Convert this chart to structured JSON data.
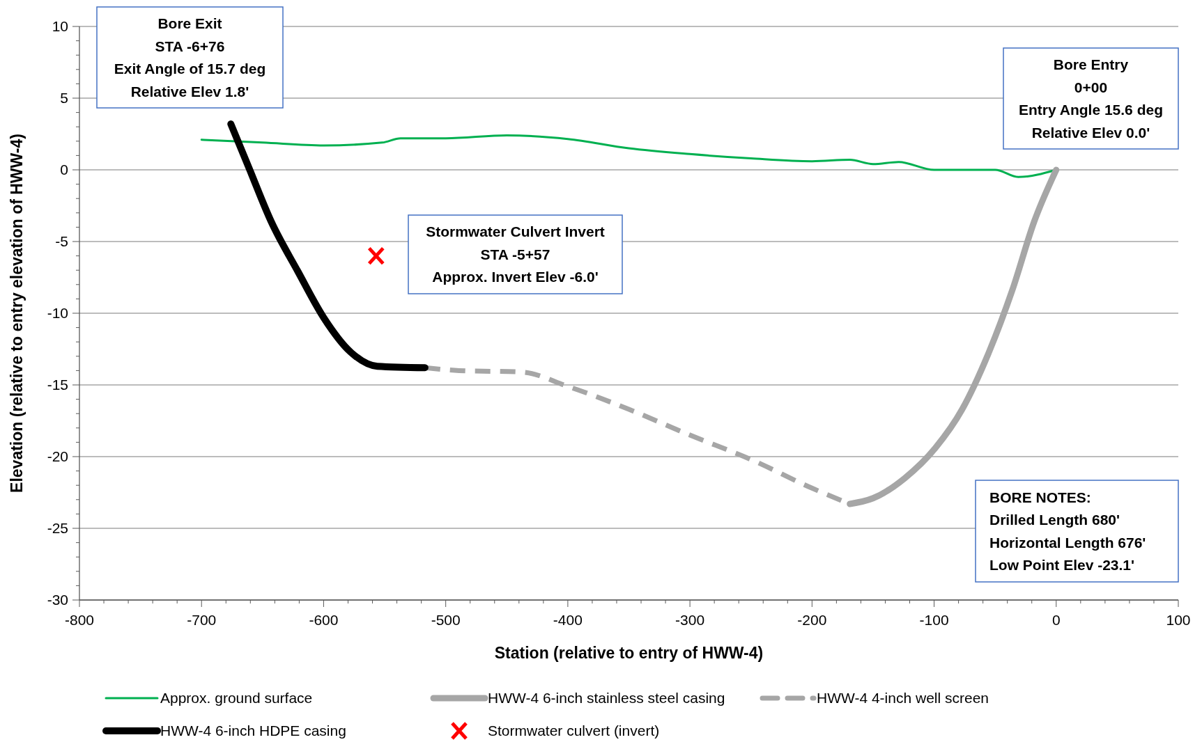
{
  "chart_data": {
    "type": "line",
    "xlabel": "Station (relative to entry of HWW-4)",
    "ylabel": "Elevation (relative to entry elevation of HWW-4)",
    "xlim": [
      -800,
      100
    ],
    "xticks": [
      -800,
      -700,
      -600,
      -500,
      -400,
      -300,
      -200,
      -100,
      0,
      100
    ],
    "ylim": [
      -30,
      10
    ],
    "yticks": [
      -30,
      -25,
      -20,
      -15,
      -10,
      -5,
      0,
      5,
      10
    ],
    "grid": "y",
    "legend": "bottom",
    "series": [
      {
        "name": "Approx. ground surface",
        "color": "#00b050",
        "line_style": "solid",
        "x": [
          -700,
          -650,
          -600,
          -552,
          -537,
          -500,
          -450,
          -400,
          -350,
          -300,
          -250,
          -200,
          -169,
          -150,
          -129,
          -100,
          -50,
          -31,
          0
        ],
        "values": [
          2.1,
          1.9,
          1.7,
          1.9,
          2.2,
          2.2,
          2.4,
          2.15,
          1.5,
          1.1,
          0.8,
          0.6,
          0.7,
          0.4,
          0.55,
          0,
          0,
          -0.5,
          0
        ]
      },
      {
        "name": "HWW-4 6-inch stainless steel casing",
        "color": "#a6a6a6",
        "line_style": "solid",
        "x": [
          -169,
          -150,
          -124,
          -99,
          -77,
          -55,
          -36,
          -18,
          0
        ],
        "values": [
          -23.3,
          -22.9,
          -21.5,
          -19.4,
          -16.7,
          -12.7,
          -8.4,
          -3.6,
          0
        ]
      },
      {
        "name": "HWW-4 4-inch well screen",
        "color": "#a6a6a6",
        "line_style": "dashed",
        "x": [
          -517,
          -489,
          -438,
          -400,
          -350,
          -300,
          -250,
          -200,
          -169
        ],
        "values": [
          -13.8,
          -14.0,
          -14.1,
          -15.1,
          -16.7,
          -18.5,
          -20.2,
          -22.2,
          -23.3
        ]
      },
      {
        "name": "HWW-4 6-inch HDPE casing",
        "color": "#000000",
        "line_style": "solid",
        "x": [
          -676,
          -661,
          -643,
          -621,
          -600,
          -578,
          -556,
          -517
        ],
        "values": [
          3.2,
          0.1,
          -3.6,
          -7.1,
          -10.3,
          -12.7,
          -13.7,
          -13.8
        ]
      },
      {
        "name": "Stormwater culvert (invert)",
        "type": "scatter",
        "marker": "cross",
        "color": "#ff0000",
        "x": [
          -557
        ],
        "values": [
          -6.0
        ]
      }
    ],
    "annotations": [
      "Bore Exit\nSTA -6+76\nExit Angle of 15.7 deg\nRelative Elev 1.8'",
      "Bore Entry\n0+00\nEntry Angle 15.6 deg\nRelative Elev 0.0'",
      "Stormwater Culvert Invert\nSTA -5+57\nApprox. Invert Elev -6.0'",
      "BORE NOTES:\nDrilled Length 680'\nHorizontal Length 676'\nLow Point Elev -23.1'"
    ]
  }
}
